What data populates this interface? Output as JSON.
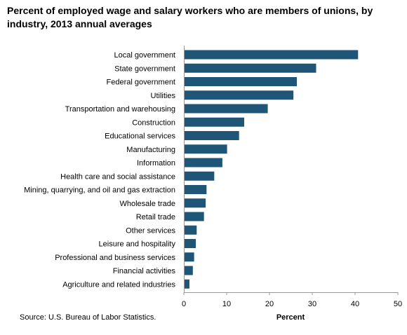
{
  "chart_data": {
    "type": "bar",
    "orientation": "horizontal",
    "title": "Percent of employed wage and salary workers who are members of unions, by industry, 2013 annual averages",
    "xlabel": "Percent",
    "ylabel": "",
    "xlim": [
      0,
      50
    ],
    "xticks": [
      "0",
      "10",
      "20",
      "30",
      "40",
      "50"
    ],
    "grid": false,
    "bar_color": "#1f5577",
    "categories": [
      "Local government",
      "State government",
      "Federal government",
      "Utilities",
      "Transportation and warehousing",
      "Construction",
      "Educational services",
      "Manufacturing",
      "Information",
      "Health care and social assistance",
      "Mining, quarrying, and oil and gas extraction",
      "Wholesale trade",
      "Retail trade",
      "Other services",
      "Leisure and hospitality",
      "Professional and business services",
      "Financial activities",
      "Agriculture and related industries"
    ],
    "values": [
      40.7,
      30.9,
      26.4,
      25.6,
      19.6,
      14.1,
      12.9,
      10.1,
      9.0,
      7.1,
      5.3,
      5.1,
      4.7,
      3.0,
      2.8,
      2.4,
      2.1,
      1.3
    ]
  },
  "source": "Source: U.S. Bureau of Labor Statistics."
}
